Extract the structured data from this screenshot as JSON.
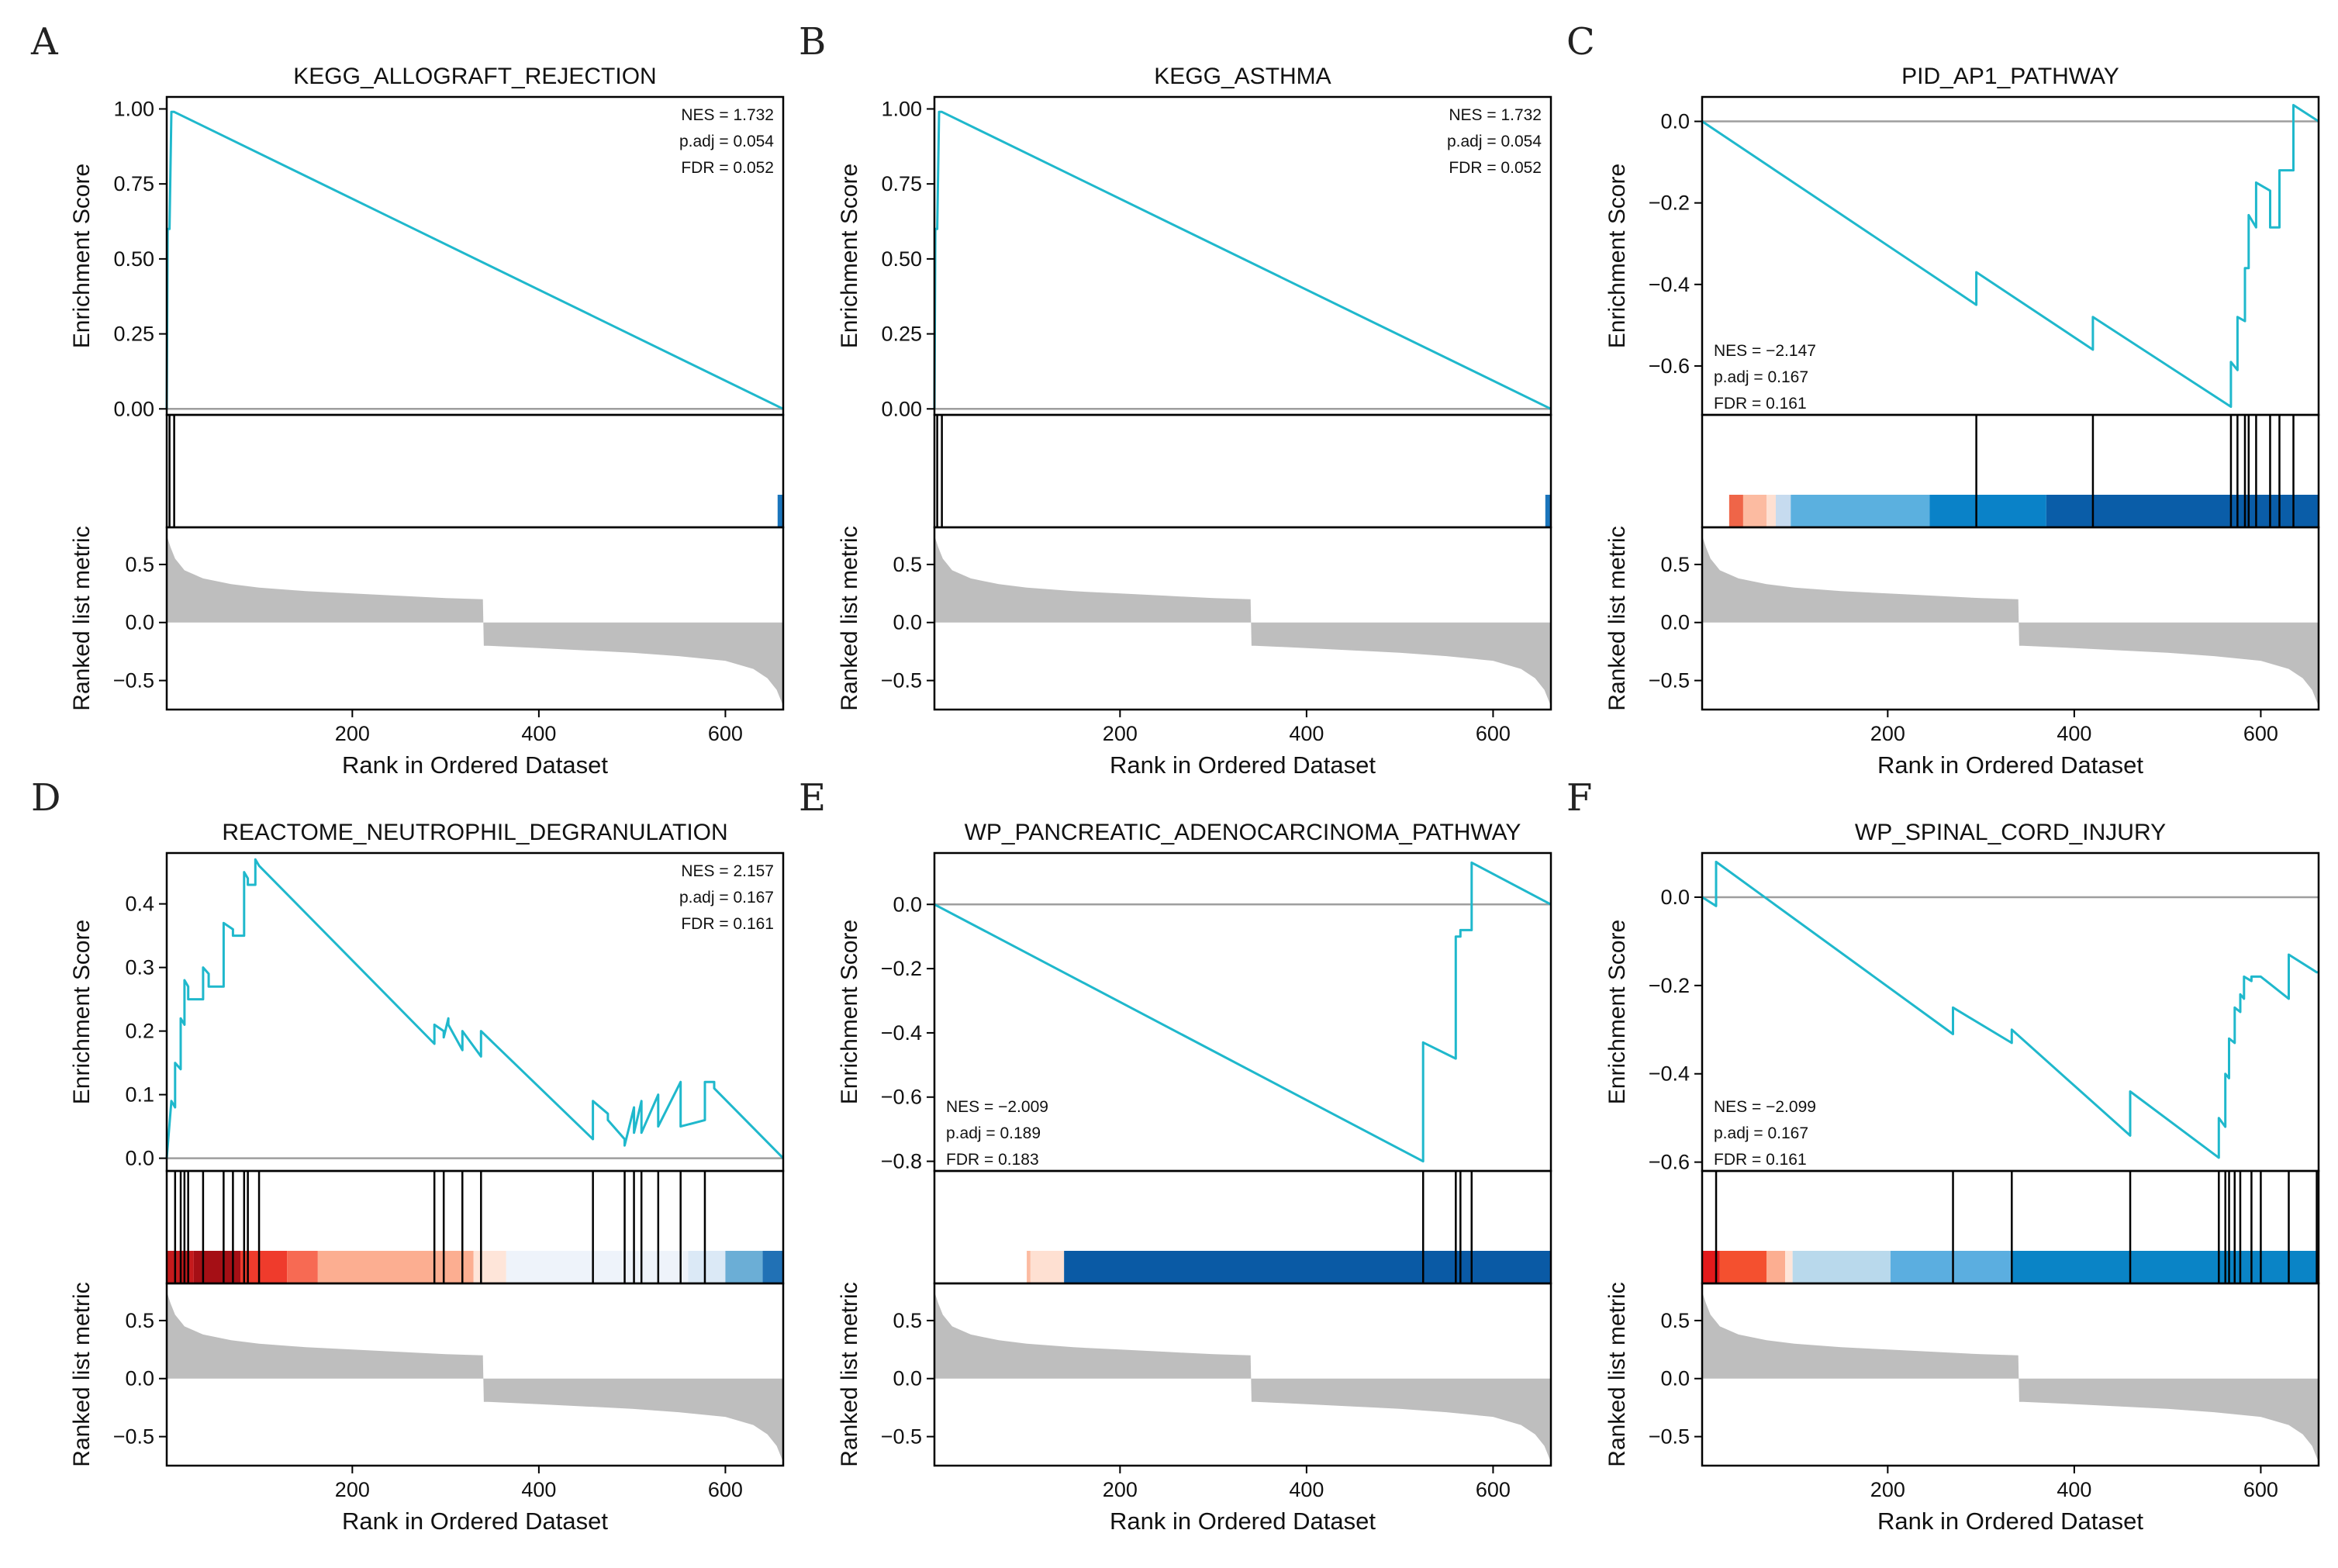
{
  "chart_data": [
    {
      "type": "line",
      "panel_label": "A",
      "title": "KEGG_ALLOGRAFT_REJECTION",
      "ylabel": "Enrichment Score",
      "rank_ylabel": "Ranked list metric",
      "xlabel": "Rank in Ordered Dataset",
      "ylim": [
        -0.02,
        1.04
      ],
      "yticks": [
        {
          "v": 0,
          "label": "0.00"
        },
        {
          "v": 0.25,
          "label": "0.25"
        },
        {
          "v": 0.5,
          "label": "0.50"
        },
        {
          "v": 0.75,
          "label": "0.75"
        },
        {
          "v": 1,
          "label": "1.00"
        }
      ],
      "xlim": [
        1,
        662
      ],
      "xticks": [
        {
          "v": 200,
          "label": "200"
        },
        {
          "v": 400,
          "label": "400"
        },
        {
          "v": 600,
          "label": "600"
        }
      ],
      "stats": [
        "NES = 1.732",
        "p.adj = 0.054",
        "FDR = 0.052"
      ],
      "stats_position": "top-right",
      "es": {
        "x": [
          1,
          2,
          4,
          6,
          9,
          662
        ],
        "y": [
          0,
          0.6,
          0.6,
          0.99,
          0.99,
          0
        ]
      },
      "hits": [
        4,
        9
      ],
      "color_bands": [
        {
          "from": 656,
          "to": 662,
          "color": "#1b75bc"
        }
      ]
    },
    {
      "type": "line",
      "panel_label": "B",
      "title": "KEGG_ASTHMA",
      "ylabel": "Enrichment Score",
      "rank_ylabel": "Ranked list metric",
      "xlabel": "Rank in Ordered Dataset",
      "ylim": [
        -0.02,
        1.04
      ],
      "yticks": [
        {
          "v": 0,
          "label": "0.00"
        },
        {
          "v": 0.25,
          "label": "0.25"
        },
        {
          "v": 0.5,
          "label": "0.50"
        },
        {
          "v": 0.75,
          "label": "0.75"
        },
        {
          "v": 1,
          "label": "1.00"
        }
      ],
      "xlim": [
        1,
        662
      ],
      "xticks": [
        {
          "v": 200,
          "label": "200"
        },
        {
          "v": 400,
          "label": "400"
        },
        {
          "v": 600,
          "label": "600"
        }
      ],
      "stats": [
        "NES = 1.732",
        "p.adj = 0.054",
        "FDR = 0.052"
      ],
      "stats_position": "top-right",
      "es": {
        "x": [
          1,
          2,
          4,
          6,
          9,
          662
        ],
        "y": [
          0,
          0.6,
          0.6,
          0.99,
          0.99,
          0
        ]
      },
      "hits": [
        4,
        9
      ],
      "color_bands": [
        {
          "from": 656,
          "to": 662,
          "color": "#1b75bc"
        }
      ]
    },
    {
      "type": "line",
      "panel_label": "C",
      "title": "PID_AP1_PATHWAY",
      "ylabel": "Enrichment Score",
      "rank_ylabel": "Ranked list metric",
      "xlabel": "Rank in Ordered Dataset",
      "ylim": [
        -0.72,
        0.06
      ],
      "yticks": [
        {
          "v": 0,
          "label": "0.0"
        },
        {
          "v": -0.2,
          "label": "−0.2"
        },
        {
          "v": -0.4,
          "label": "−0.4"
        },
        {
          "v": -0.6,
          "label": "−0.6"
        }
      ],
      "xlim": [
        1,
        662
      ],
      "xticks": [
        {
          "v": 200,
          "label": "200"
        },
        {
          "v": 400,
          "label": "400"
        },
        {
          "v": 600,
          "label": "600"
        }
      ],
      "stats": [
        "NES = −2.147",
        "p.adj = 0.167",
        "FDR = 0.161"
      ],
      "stats_position": "bottom-left",
      "es": {
        "x": [
          1,
          295,
          295,
          420,
          420,
          568,
          568,
          575,
          575,
          583,
          583,
          587,
          587,
          595,
          595,
          610,
          610,
          620,
          620,
          635,
          635,
          662
        ],
        "y": [
          0,
          -0.45,
          -0.37,
          -0.56,
          -0.48,
          -0.7,
          -0.59,
          -0.61,
          -0.48,
          -0.49,
          -0.36,
          -0.36,
          -0.23,
          -0.26,
          -0.15,
          -0.17,
          -0.26,
          -0.26,
          -0.12,
          -0.12,
          0.04,
          0
        ]
      },
      "hits": [
        295,
        420,
        568,
        575,
        583,
        587,
        595,
        610,
        620,
        635
      ],
      "color_bands": [
        {
          "from": 30,
          "to": 45,
          "color": "#ef6548"
        },
        {
          "from": 45,
          "to": 70,
          "color": "#fcbba1"
        },
        {
          "from": 70,
          "to": 80,
          "color": "#fee0d2"
        },
        {
          "from": 80,
          "to": 96,
          "color": "#c6dbef"
        },
        {
          "from": 96,
          "to": 245,
          "color": "#5bb0df"
        },
        {
          "from": 245,
          "to": 370,
          "color": "#0a82c8"
        },
        {
          "from": 370,
          "to": 662,
          "color": "#0a5da8"
        }
      ]
    },
    {
      "type": "line",
      "panel_label": "D",
      "title": "REACTOME_NEUTROPHIL_DEGRANULATION",
      "ylabel": "Enrichment Score",
      "rank_ylabel": "Ranked list metric",
      "xlabel": "Rank in Ordered Dataset",
      "ylim": [
        -0.02,
        0.48
      ],
      "yticks": [
        {
          "v": 0,
          "label": "0.0"
        },
        {
          "v": 0.1,
          "label": "0.1"
        },
        {
          "v": 0.2,
          "label": "0.2"
        },
        {
          "v": 0.3,
          "label": "0.3"
        },
        {
          "v": 0.4,
          "label": "0.4"
        }
      ],
      "xlim": [
        1,
        662
      ],
      "xticks": [
        {
          "v": 200,
          "label": "200"
        },
        {
          "v": 400,
          "label": "400"
        },
        {
          "v": 600,
          "label": "600"
        }
      ],
      "stats": [
        "NES = 2.157",
        "p.adj = 0.167",
        "FDR = 0.161"
      ],
      "stats_position": "top-right",
      "es": {
        "x": [
          1,
          6,
          10,
          10,
          16,
          16,
          20,
          20,
          24,
          24,
          40,
          40,
          46,
          46,
          62,
          62,
          72,
          72,
          84,
          84,
          88,
          88,
          96,
          96,
          100,
          100,
          288,
          288,
          298,
          298,
          303,
          303,
          318,
          318,
          338,
          338,
          458,
          458,
          474,
          474,
          492,
          492,
          502,
          502,
          510,
          510,
          528,
          528,
          552,
          552,
          578,
          578,
          588,
          588,
          662
        ],
        "y": [
          0,
          0.09,
          0.08,
          0.15,
          0.14,
          0.22,
          0.21,
          0.28,
          0.27,
          0.25,
          0.25,
          0.3,
          0.29,
          0.27,
          0.27,
          0.37,
          0.36,
          0.35,
          0.35,
          0.45,
          0.44,
          0.43,
          0.43,
          0.47,
          0.46,
          0.46,
          0.18,
          0.21,
          0.2,
          0.19,
          0.22,
          0.21,
          0.17,
          0.2,
          0.16,
          0.2,
          0.03,
          0.09,
          0.07,
          0.06,
          0.03,
          0.02,
          0.08,
          0.04,
          0.09,
          0.04,
          0.1,
          0.05,
          0.12,
          0.05,
          0.06,
          0.12,
          0.12,
          0.11,
          0.0
        ]
      },
      "hits": [
        10,
        16,
        20,
        24,
        40,
        62,
        72,
        84,
        88,
        100,
        288,
        298,
        318,
        338,
        458,
        492,
        502,
        510,
        528,
        552,
        578
      ],
      "color_bands": [
        {
          "from": 1,
          "to": 30,
          "color": "#c41a1c"
        },
        {
          "from": 30,
          "to": 80,
          "color": "#a50f15"
        },
        {
          "from": 80,
          "to": 130,
          "color": "#ef3b2c"
        },
        {
          "from": 130,
          "to": 163,
          "color": "#f76a53"
        },
        {
          "from": 163,
          "to": 330,
          "color": "#fcae91"
        },
        {
          "from": 330,
          "to": 365,
          "color": "#fee5d9"
        },
        {
          "from": 365,
          "to": 560,
          "color": "#eef3fa"
        },
        {
          "from": 560,
          "to": 600,
          "color": "#dbe9f6"
        },
        {
          "from": 600,
          "to": 640,
          "color": "#6baed6"
        },
        {
          "from": 640,
          "to": 662,
          "color": "#2171b5"
        }
      ]
    },
    {
      "type": "line",
      "panel_label": "E",
      "title": "WP_PANCREATIC_ADENOCARCINOMA_PATHWAY",
      "ylabel": "Enrichment Score",
      "rank_ylabel": "Ranked list metric",
      "xlabel": "Rank in Ordered Dataset",
      "ylim": [
        -0.83,
        0.16
      ],
      "yticks": [
        {
          "v": 0,
          "label": "0.0"
        },
        {
          "v": -0.2,
          "label": "−0.2"
        },
        {
          "v": -0.4,
          "label": "−0.4"
        },
        {
          "v": -0.6,
          "label": "−0.6"
        },
        {
          "v": -0.8,
          "label": "−0.8"
        }
      ],
      "xlim": [
        1,
        662
      ],
      "xticks": [
        {
          "v": 200,
          "label": "200"
        },
        {
          "v": 400,
          "label": "400"
        },
        {
          "v": 600,
          "label": "600"
        }
      ],
      "stats": [
        "NES = −2.009",
        "p.adj = 0.189",
        "FDR = 0.183"
      ],
      "stats_position": "bottom-left",
      "es": {
        "x": [
          1,
          525,
          525,
          560,
          560,
          565,
          565,
          577,
          577,
          662
        ],
        "y": [
          0,
          -0.8,
          -0.43,
          -0.48,
          -0.1,
          -0.1,
          -0.08,
          -0.08,
          0.13,
          0
        ]
      },
      "hits": [
        525,
        560,
        565,
        577
      ],
      "color_bands": [
        {
          "from": 100,
          "to": 104,
          "color": "#fcbba1"
        },
        {
          "from": 104,
          "to": 140,
          "color": "#fee0d2"
        },
        {
          "from": 140,
          "to": 662,
          "color": "#0a5aa5"
        }
      ]
    },
    {
      "type": "line",
      "panel_label": "F",
      "title": "WP_SPINAL_CORD_INJURY",
      "ylabel": "Enrichment Score",
      "rank_ylabel": "Ranked list metric",
      "xlabel": "Rank in Ordered Dataset",
      "ylim": [
        -0.62,
        0.1
      ],
      "yticks": [
        {
          "v": 0,
          "label": "0.0"
        },
        {
          "v": -0.2,
          "label": "−0.2"
        },
        {
          "v": -0.4,
          "label": "−0.4"
        },
        {
          "v": -0.6,
          "label": "−0.6"
        }
      ],
      "xlim": [
        1,
        662
      ],
      "xticks": [
        {
          "v": 200,
          "label": "200"
        },
        {
          "v": 400,
          "label": "400"
        },
        {
          "v": 600,
          "label": "600"
        }
      ],
      "stats": [
        "NES = −2.099",
        "p.adj = 0.167",
        "FDR = 0.161"
      ],
      "stats_position": "bottom-left",
      "es": {
        "x": [
          1,
          16,
          16,
          270,
          270,
          333,
          333,
          460,
          460,
          555,
          555,
          562,
          562,
          566,
          566,
          572,
          572,
          578,
          578,
          582,
          582,
          590,
          590,
          600,
          600,
          630,
          630,
          660,
          660,
          662
        ],
        "y": [
          0,
          -0.02,
          0.08,
          -0.31,
          -0.25,
          -0.33,
          -0.3,
          -0.54,
          -0.44,
          -0.59,
          -0.5,
          -0.52,
          -0.4,
          -0.41,
          -0.32,
          -0.33,
          -0.25,
          -0.26,
          -0.22,
          -0.23,
          -0.18,
          -0.19,
          -0.18,
          -0.18,
          -0.18,
          -0.23,
          -0.13,
          -0.17,
          -0.17,
          -0.17
        ]
      },
      "hits": [
        16,
        270,
        333,
        460,
        555,
        562,
        566,
        572,
        578,
        590,
        600,
        630,
        660
      ],
      "color_bands": [
        {
          "from": 1,
          "to": 20,
          "color": "#e31a1c"
        },
        {
          "from": 20,
          "to": 70,
          "color": "#f4502f"
        },
        {
          "from": 70,
          "to": 90,
          "color": "#fcae91"
        },
        {
          "from": 90,
          "to": 98,
          "color": "#fee5d9"
        },
        {
          "from": 98,
          "to": 203,
          "color": "#b9d9ec"
        },
        {
          "from": 203,
          "to": 333,
          "color": "#5baee0"
        },
        {
          "from": 333,
          "to": 662,
          "color": "#0a84c6"
        }
      ]
    }
  ],
  "rank_metric": {
    "ylim": [
      -0.75,
      0.82
    ],
    "yticks": [
      {
        "v": 0.5,
        "label": "0.5"
      },
      {
        "v": 0,
        "label": "0.0"
      },
      {
        "v": -0.5,
        "label": "−0.5"
      }
    ],
    "fill_color": "#bebebe",
    "curve": {
      "x": [
        1,
        5,
        10,
        20,
        40,
        70,
        100,
        150,
        200,
        250,
        300,
        340,
        341,
        345,
        400,
        450,
        500,
        550,
        600,
        630,
        645,
        655,
        662
      ],
      "y": [
        0.75,
        0.65,
        0.55,
        0.45,
        0.38,
        0.33,
        0.3,
        0.27,
        0.25,
        0.23,
        0.21,
        0.2,
        -0.2,
        -0.2,
        -0.22,
        -0.24,
        -0.26,
        -0.29,
        -0.33,
        -0.4,
        -0.48,
        -0.58,
        -0.72
      ]
    }
  },
  "colors": {
    "es_line": "#1fb8cc",
    "zero_line": "#9e9e9e",
    "hit_line": "#000000",
    "axis": "#000000"
  }
}
